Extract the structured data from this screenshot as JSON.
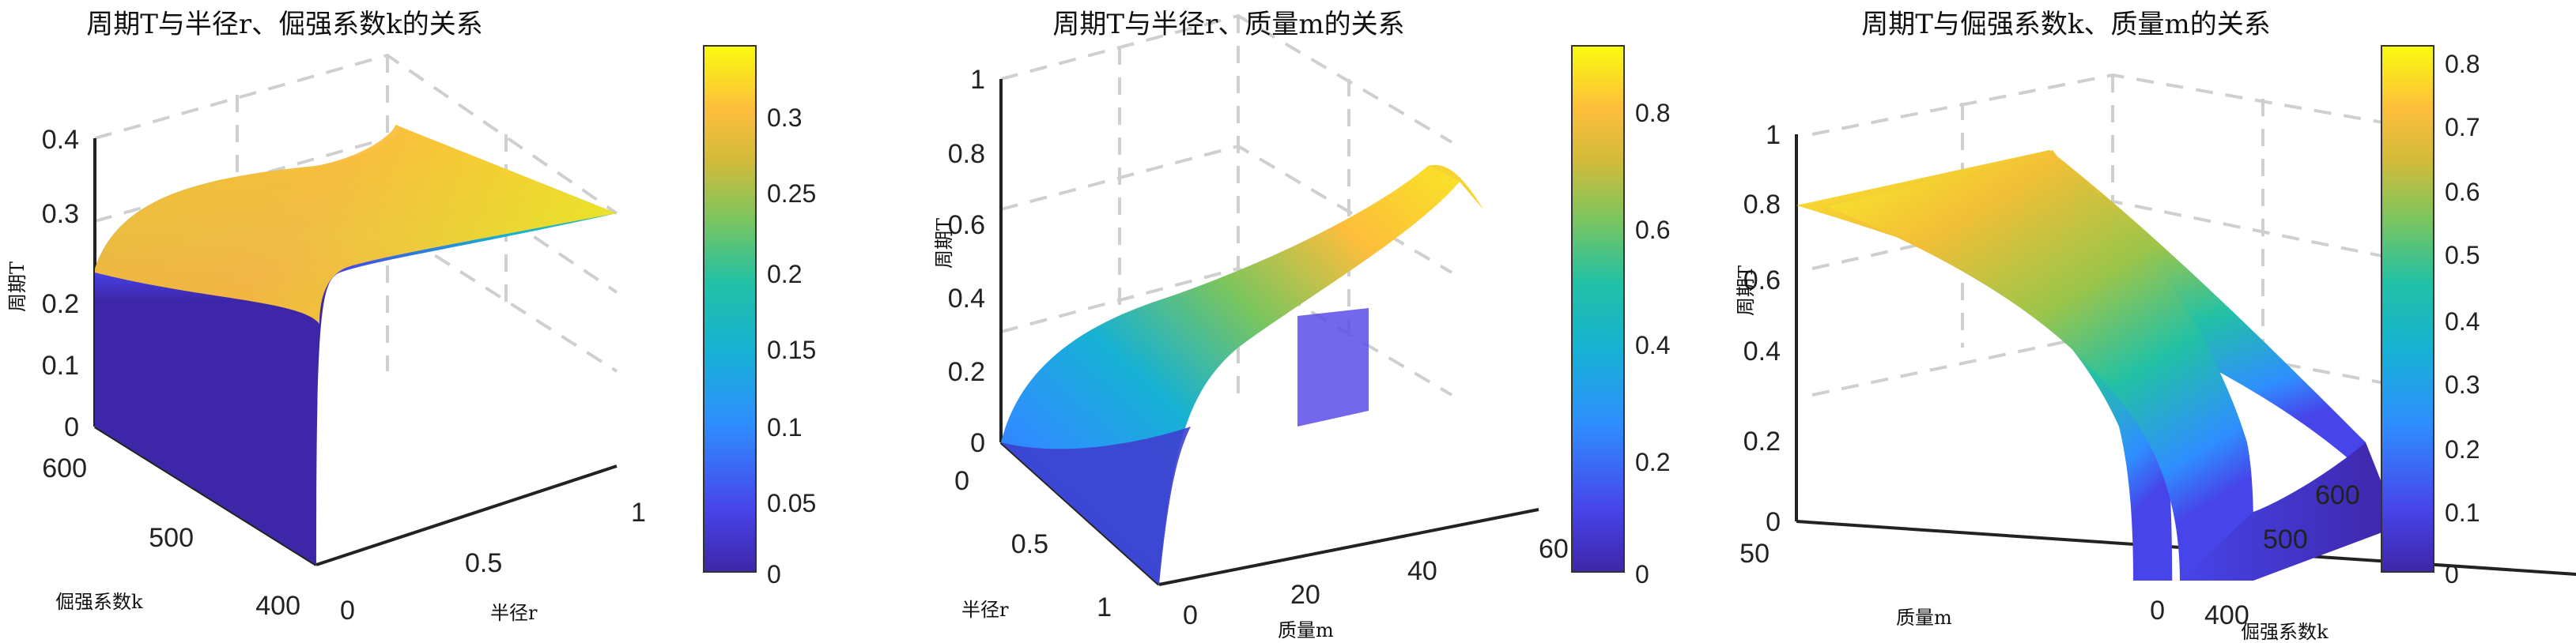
{
  "chart_data": [
    {
      "type": "surface",
      "title": "周期T与半径r、倔强系数k的关系",
      "xlabel": "半径r",
      "ylabel": "倔强系数k",
      "zlabel": "周期T",
      "x_ticks": [
        "0",
        "0.5",
        "1"
      ],
      "y_ticks": [
        "400",
        "500",
        "600"
      ],
      "z_ticks": [
        "0",
        "0.1",
        "0.2",
        "0.3",
        "0.4"
      ],
      "xlim": [
        0,
        1
      ],
      "ylim": [
        400,
        600
      ],
      "zlim": [
        0,
        0.4
      ],
      "colorbar_ticks": [
        "0",
        "0.05",
        "0.1",
        "0.15",
        "0.2",
        "0.25",
        "0.3"
      ],
      "colorbar_range": [
        0,
        0.34
      ],
      "colormap": "parula",
      "grid": true
    },
    {
      "type": "surface",
      "title": "周期T与半径r、质量m的关系",
      "xlabel": "质量m",
      "ylabel": "半径r",
      "zlabel": "周期T",
      "x_ticks": [
        "0",
        "20",
        "40",
        "60"
      ],
      "y_ticks": [
        "0",
        "0.5",
        "1"
      ],
      "z_ticks": [
        "0",
        "0.2",
        "0.4",
        "0.6",
        "0.8",
        "1"
      ],
      "xlim": [
        0,
        60
      ],
      "ylim": [
        0,
        1
      ],
      "zlim": [
        0,
        1
      ],
      "colorbar_ticks": [
        "0",
        "0.2",
        "0.4",
        "0.6",
        "0.8"
      ],
      "colorbar_range": [
        0,
        0.9
      ],
      "colormap": "parula",
      "grid": true
    },
    {
      "type": "surface",
      "title": "周期T与倔强系数k、质量m的关系",
      "xlabel": "质量m",
      "ylabel": "倔强系数k",
      "zlabel": "周期T",
      "x_ticks": [
        "0",
        "50"
      ],
      "y_ticks": [
        "400",
        "500",
        "600"
      ],
      "z_ticks": [
        "0",
        "0.2",
        "0.4",
        "0.6",
        "0.8",
        "1"
      ],
      "xlim": [
        0,
        50
      ],
      "ylim": [
        400,
        600
      ],
      "zlim": [
        0,
        1
      ],
      "colorbar_ticks": [
        "0",
        "0.1",
        "0.2",
        "0.3",
        "0.4",
        "0.5",
        "0.6",
        "0.7",
        "0.8"
      ],
      "colorbar_range": [
        0,
        0.82
      ],
      "colormap": "parula",
      "grid": true
    }
  ],
  "colors": {
    "parula": [
      "#3e26a8",
      "#4744e9",
      "#2f8eff",
      "#16b1d4",
      "#22c1a5",
      "#7ac55e",
      "#d2bb3b",
      "#fdbe3c",
      "#f5e425",
      "#f9fb0e"
    ]
  }
}
